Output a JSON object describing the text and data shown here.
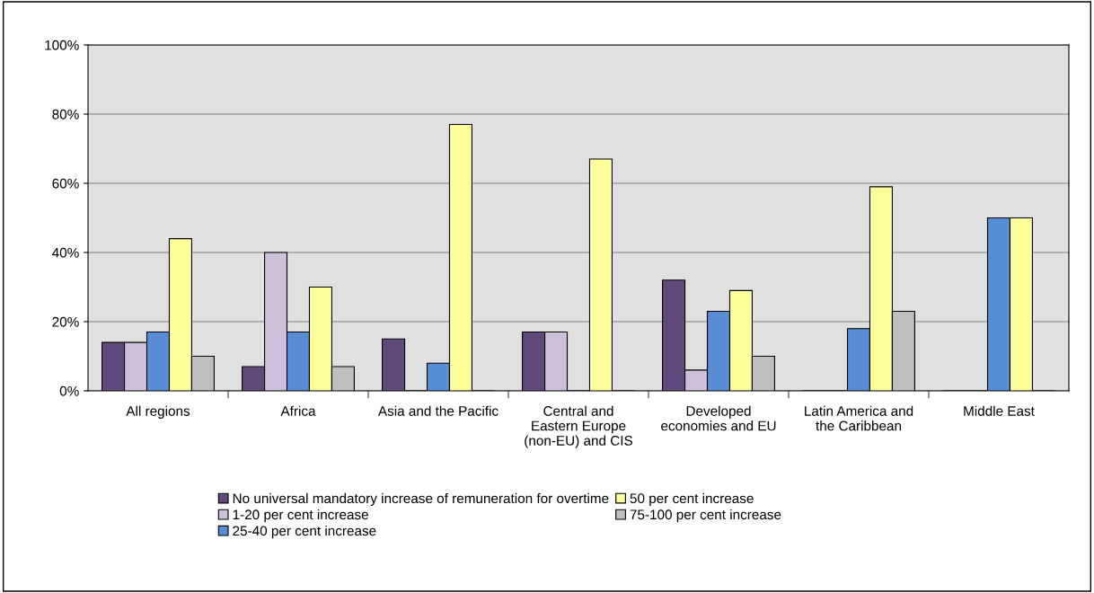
{
  "chart_data": {
    "type": "bar",
    "categories": [
      "All regions",
      "Africa",
      "Asia and the Pacific",
      "Central and\nEastern Europe\n(non-EU) and CIS",
      "Developed\neconomies and EU",
      "Latin America and\nthe Caribbean",
      "Middle East"
    ],
    "series": [
      {
        "name": "No universal mandatory increase of remuneration for overtime",
        "color": "#604a7b",
        "values": [
          14,
          7,
          15,
          17,
          32,
          0,
          0
        ]
      },
      {
        "name": "1-20 per cent increase",
        "color": "#ccc0da",
        "values": [
          14,
          40,
          0,
          17,
          6,
          0,
          0
        ]
      },
      {
        "name": "25-40 per cent increase",
        "color": "#558ed5",
        "values": [
          17,
          17,
          8,
          0,
          23,
          18,
          50
        ]
      },
      {
        "name": "50 per cent increase",
        "color": "#ffff99",
        "values": [
          44,
          30,
          77,
          67,
          29,
          59,
          50
        ]
      },
      {
        "name": "75-100 per cent increase",
        "color": "#bfbfbf",
        "values": [
          10,
          7,
          0,
          0,
          10,
          23,
          0
        ]
      }
    ],
    "ylim": [
      0,
      100
    ],
    "yticks": [
      {
        "value": 0,
        "label": "0%"
      },
      {
        "value": 20,
        "label": "20%"
      },
      {
        "value": 40,
        "label": "40%"
      },
      {
        "value": 60,
        "label": "60%"
      },
      {
        "value": 80,
        "label": "80%"
      },
      {
        "value": 100,
        "label": "100%"
      }
    ],
    "grid": "y",
    "legend": "bottom"
  }
}
